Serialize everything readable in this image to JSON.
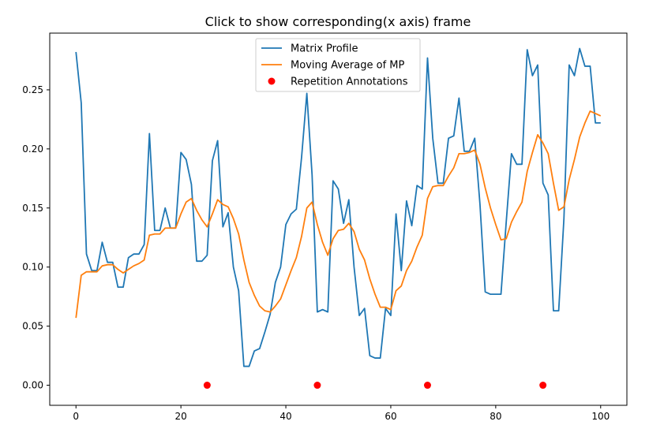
{
  "chart_data": {
    "type": "line",
    "title": "Click to show corresponding(x axis) frame",
    "xlabel": "",
    "ylabel": "",
    "xlim": [
      -5,
      105
    ],
    "ylim": [
      -0.017,
      0.298
    ],
    "xticks": [
      0,
      20,
      40,
      60,
      80,
      100
    ],
    "yticks": [
      0.0,
      0.05,
      0.1,
      0.15,
      0.2,
      0.25
    ],
    "ytick_labels": [
      "0.00",
      "0.05",
      "0.10",
      "0.15",
      "0.20",
      "0.25"
    ],
    "grid": false,
    "legend_position": "top-center",
    "series": [
      {
        "name": "Matrix Profile",
        "kind": "line",
        "color": "#1f77b4",
        "x": [
          0,
          1,
          2,
          3,
          4,
          5,
          6,
          7,
          8,
          9,
          10,
          11,
          12,
          13,
          14,
          15,
          16,
          17,
          18,
          19,
          20,
          21,
          22,
          23,
          24,
          25,
          26,
          27,
          28,
          29,
          30,
          31,
          32,
          33,
          34,
          35,
          36,
          37,
          38,
          39,
          40,
          41,
          42,
          43,
          44,
          45,
          46,
          47,
          48,
          49,
          50,
          51,
          52,
          53,
          54,
          55,
          56,
          57,
          58,
          59,
          60,
          61,
          62,
          63,
          64,
          65,
          66,
          67,
          68,
          69,
          70,
          71,
          72,
          73,
          74,
          75,
          76,
          77,
          78,
          79,
          80,
          81,
          82,
          83,
          84,
          85,
          86,
          87,
          88,
          89,
          90,
          91,
          92,
          93,
          94,
          95,
          96,
          97,
          98,
          99,
          100
        ],
        "y": [
          0.282,
          0.239,
          0.111,
          0.097,
          0.097,
          0.121,
          0.104,
          0.104,
          0.083,
          0.083,
          0.108,
          0.111,
          0.111,
          0.119,
          0.213,
          0.131,
          0.131,
          0.15,
          0.133,
          0.133,
          0.197,
          0.191,
          0.17,
          0.105,
          0.105,
          0.11,
          0.19,
          0.207,
          0.134,
          0.146,
          0.1,
          0.08,
          0.016,
          0.016,
          0.029,
          0.031,
          0.045,
          0.06,
          0.087,
          0.1,
          0.136,
          0.145,
          0.149,
          0.193,
          0.247,
          0.178,
          0.062,
          0.064,
          0.062,
          0.173,
          0.166,
          0.137,
          0.157,
          0.1,
          0.059,
          0.065,
          0.025,
          0.023,
          0.023,
          0.065,
          0.059,
          0.145,
          0.097,
          0.156,
          0.135,
          0.169,
          0.166,
          0.277,
          0.209,
          0.171,
          0.171,
          0.209,
          0.211,
          0.243,
          0.198,
          0.198,
          0.209,
          0.153,
          0.079,
          0.077,
          0.077,
          0.077,
          0.138,
          0.196,
          0.187,
          0.187,
          0.284,
          0.262,
          0.271,
          0.171,
          0.161,
          0.063,
          0.063,
          0.141,
          0.271,
          0.262,
          0.285,
          0.27,
          0.27,
          0.222,
          0.222
        ]
      },
      {
        "name": "Moving Average of MP",
        "kind": "line",
        "color": "#ff7f0e",
        "x": [
          0,
          1,
          2,
          3,
          4,
          5,
          6,
          7,
          8,
          9,
          10,
          11,
          12,
          13,
          14,
          15,
          16,
          17,
          18,
          19,
          20,
          21,
          22,
          23,
          24,
          25,
          26,
          27,
          28,
          29,
          30,
          31,
          32,
          33,
          34,
          35,
          36,
          37,
          38,
          39,
          40,
          41,
          42,
          43,
          44,
          45,
          46,
          47,
          48,
          49,
          50,
          51,
          52,
          53,
          54,
          55,
          56,
          57,
          58,
          59,
          60,
          61,
          62,
          63,
          64,
          65,
          66,
          67,
          68,
          69,
          70,
          71,
          72,
          73,
          74,
          75,
          76,
          77,
          78,
          79,
          80,
          81,
          82,
          83,
          84,
          85,
          86,
          87,
          88,
          89,
          90,
          91,
          92,
          93,
          94,
          95,
          96,
          97,
          98,
          99,
          100
        ],
        "y": [
          0.057,
          0.093,
          0.096,
          0.096,
          0.096,
          0.101,
          0.102,
          0.102,
          0.098,
          0.095,
          0.098,
          0.101,
          0.103,
          0.106,
          0.127,
          0.128,
          0.128,
          0.133,
          0.133,
          0.133,
          0.145,
          0.155,
          0.158,
          0.148,
          0.14,
          0.134,
          0.145,
          0.157,
          0.153,
          0.151,
          0.141,
          0.128,
          0.106,
          0.087,
          0.076,
          0.067,
          0.063,
          0.062,
          0.067,
          0.073,
          0.085,
          0.097,
          0.108,
          0.126,
          0.15,
          0.155,
          0.136,
          0.121,
          0.11,
          0.124,
          0.131,
          0.132,
          0.137,
          0.13,
          0.115,
          0.106,
          0.09,
          0.077,
          0.066,
          0.066,
          0.064,
          0.08,
          0.084,
          0.097,
          0.105,
          0.117,
          0.127,
          0.158,
          0.168,
          0.169,
          0.169,
          0.177,
          0.184,
          0.196,
          0.196,
          0.197,
          0.199,
          0.187,
          0.167,
          0.15,
          0.136,
          0.123,
          0.124,
          0.138,
          0.147,
          0.155,
          0.181,
          0.197,
          0.212,
          0.205,
          0.196,
          0.171,
          0.148,
          0.151,
          0.174,
          0.191,
          0.21,
          0.222,
          0.232,
          0.23,
          0.228
        ]
      },
      {
        "name": "Repetition Annotations",
        "kind": "scatter",
        "color": "#ff0000",
        "x": [
          25,
          46,
          67,
          89
        ],
        "y": [
          0,
          0,
          0,
          0
        ]
      }
    ]
  }
}
